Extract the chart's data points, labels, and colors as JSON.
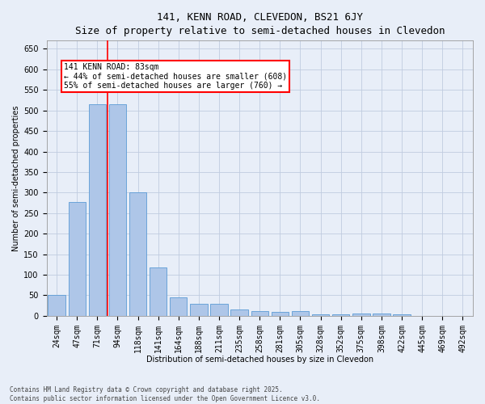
{
  "title": "141, KENN ROAD, CLEVEDON, BS21 6JY",
  "subtitle": "Size of property relative to semi-detached houses in Clevedon",
  "xlabel": "Distribution of semi-detached houses by size in Clevedon",
  "ylabel": "Number of semi-detached properties",
  "categories": [
    "24sqm",
    "47sqm",
    "71sqm",
    "94sqm",
    "118sqm",
    "141sqm",
    "164sqm",
    "188sqm",
    "211sqm",
    "235sqm",
    "258sqm",
    "281sqm",
    "305sqm",
    "328sqm",
    "352sqm",
    "375sqm",
    "398sqm",
    "422sqm",
    "445sqm",
    "469sqm",
    "492sqm"
  ],
  "values": [
    50,
    278,
    515,
    515,
    300,
    118,
    45,
    30,
    30,
    15,
    12,
    10,
    12,
    3,
    3,
    6,
    6,
    3,
    0,
    0,
    0
  ],
  "bar_color": "#aec6e8",
  "bar_edge_color": "#5b9bd5",
  "vline_x": 2.5,
  "vline_color": "red",
  "annotation_text": "141 KENN ROAD: 83sqm\n← 44% of semi-detached houses are smaller (608)\n55% of semi-detached houses are larger (760) →",
  "ylim": [
    0,
    670
  ],
  "yticks": [
    0,
    50,
    100,
    150,
    200,
    250,
    300,
    350,
    400,
    450,
    500,
    550,
    600,
    650
  ],
  "footer_line1": "Contains HM Land Registry data © Crown copyright and database right 2025.",
  "footer_line2": "Contains public sector information licensed under the Open Government Licence v3.0.",
  "bg_color": "#e8eef8",
  "grid_color": "#c0cce0",
  "title_fontsize": 9,
  "subtitle_fontsize": 8,
  "axis_label_fontsize": 7,
  "tick_fontsize": 7,
  "annot_fontsize": 7
}
